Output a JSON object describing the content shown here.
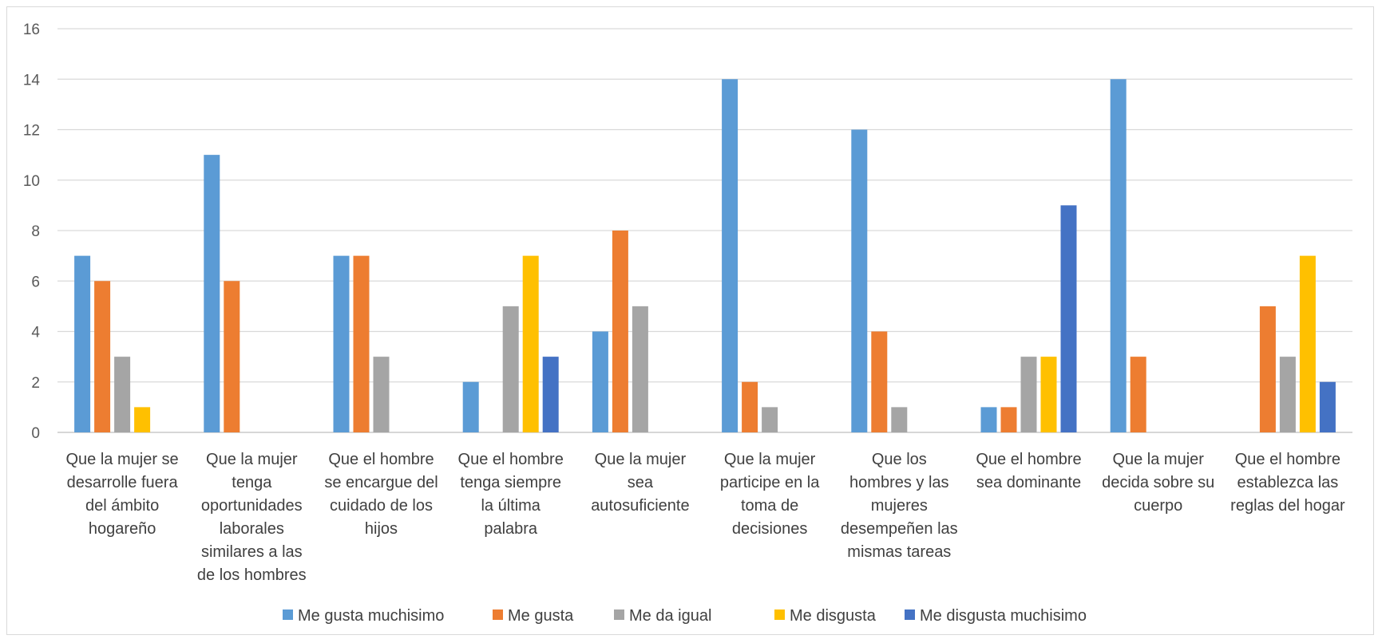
{
  "chart_data": {
    "type": "bar",
    "title": "",
    "xlabel": "",
    "ylabel": "",
    "ylim": [
      0,
      16
    ],
    "yticks": [
      "0",
      "2",
      "4",
      "6",
      "8",
      "10",
      "12",
      "14",
      "16"
    ],
    "grid": true,
    "legend_position": "bottom",
    "categories": [
      "Que la mujer se desarrolle fuera del ámbito hogareño",
      "Que la mujer tenga oportunidades laborales similares a las de los hombres",
      "Que el hombre se encargue del cuidado de los hijos",
      "Que el hombre tenga siempre la última palabra",
      "Que la mujer sea autosuficiente",
      "Que la mujer participe en la toma de decisiones",
      "Que los hombres y las mujeres desempeñen las mismas tareas",
      "Que el hombre sea dominante",
      "Que la mujer decida sobre su cuerpo",
      "Que el hombre establezca las reglas del hogar"
    ],
    "category_lines": [
      [
        "Que la mujer se",
        "desarrolle fuera",
        "del ámbito",
        "hogareño"
      ],
      [
        "Que la mujer",
        "tenga",
        "oportunidades",
        "laborales",
        "similares a las",
        "de los hombres"
      ],
      [
        "Que el hombre",
        "se encargue del",
        "cuidado de los",
        "hijos"
      ],
      [
        "Que el hombre",
        "tenga siempre",
        "la última",
        "palabra"
      ],
      [
        "Que la mujer",
        "sea",
        "autosuficiente"
      ],
      [
        "Que la mujer",
        "participe en la",
        "toma de",
        "decisiones"
      ],
      [
        "Que los",
        "hombres y las",
        "mujeres",
        "desempeñen las",
        "mismas tareas"
      ],
      [
        "Que el hombre",
        "sea dominante"
      ],
      [
        "Que la mujer",
        "decida sobre su",
        "cuerpo"
      ],
      [
        "Que el hombre",
        "establezca las",
        "reglas del hogar"
      ]
    ],
    "series": [
      {
        "name": "Me gusta muchisimo",
        "color": "#5b9bd5",
        "values": [
          7,
          11,
          7,
          2,
          4,
          14,
          12,
          1,
          14,
          0
        ]
      },
      {
        "name": "Me gusta",
        "color": "#ed7d31",
        "values": [
          6,
          6,
          7,
          0,
          8,
          2,
          4,
          1,
          3,
          5
        ]
      },
      {
        "name": "Me da igual",
        "color": "#a5a5a5",
        "values": [
          3,
          0,
          3,
          5,
          5,
          1,
          1,
          3,
          0,
          3
        ]
      },
      {
        "name": "Me disgusta",
        "color": "#ffc000",
        "values": [
          1,
          0,
          0,
          7,
          0,
          0,
          0,
          3,
          0,
          7
        ]
      },
      {
        "name": "Me disgusta muchisimo",
        "color": "#4472c4",
        "values": [
          0,
          0,
          0,
          3,
          0,
          0,
          0,
          9,
          0,
          2
        ]
      }
    ],
    "gridline_color": "#d9d9d9",
    "axis_color": "#bfbfbf"
  }
}
